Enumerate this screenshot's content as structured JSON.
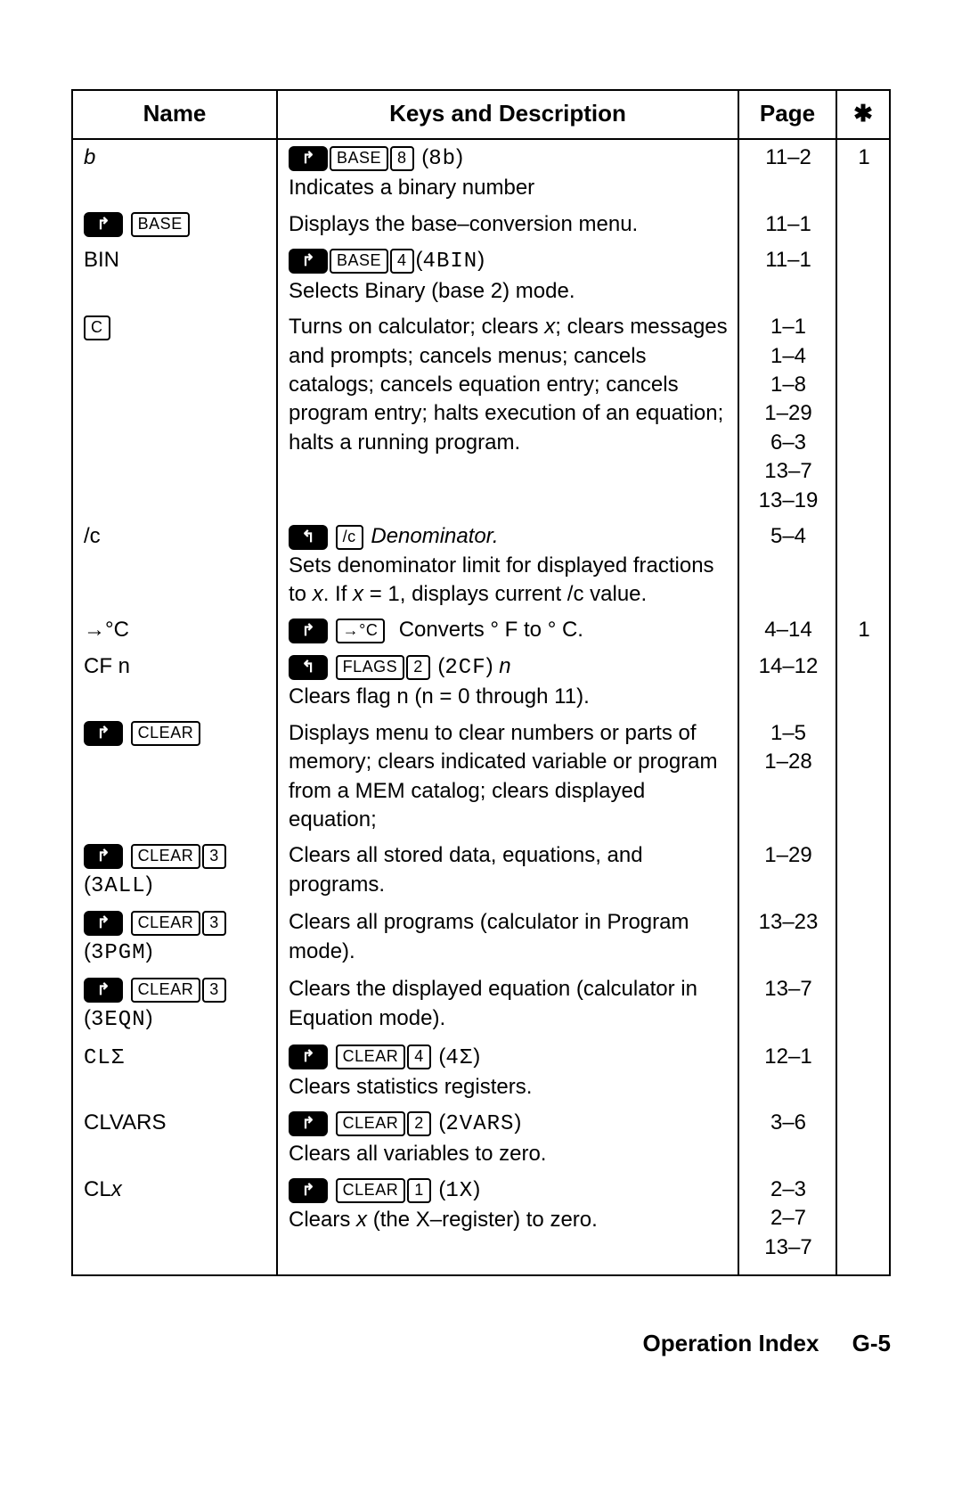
{
  "header": {
    "col_name": "Name",
    "col_desc": "Keys and Description",
    "col_page": "Page",
    "col_star": "✱"
  },
  "rows": {
    "r1": {
      "name_html": "<span class='ital'>b</span>",
      "desc_html": "<span class='kshift'>↱</span><span class='kbox'>BASE</span><span class='kbox'>8</span> (<span class='lcd'>8b</span>)<br>Indicates a binary number",
      "page_html": "11–2",
      "star_html": "1"
    },
    "r2": {
      "name_html": "<span class='kshift'>↱</span> <span class='kbox'>BASE</span>",
      "desc_html": "Displays the base–conversion menu.",
      "page_html": "11–1",
      "star_html": ""
    },
    "r3": {
      "name_html": "BIN",
      "desc_html": "<span class='kshift'>↱</span><span class='kbox'>BASE</span><span class='kbox'>4</span>(<span class='lcd'>4BIN</span>)<br>Selects Binary (base 2) mode.",
      "page_html": "11–1",
      "star_html": ""
    },
    "r4": {
      "name_html": "<span class='kbox'>C</span>",
      "desc_html": "Turns on calculator; clears <span class='ital'>x</span>; clears messages and prompts; cancels menus; cancels catalogs; cancels equation entry; cancels program entry; halts execution of an equation; halts a running program.",
      "page_html": "1–1<br>1–4<br>1–8<br>1–29<br>6–3<br>13–7<br>13–19",
      "star_html": ""
    },
    "r5": {
      "name_html": "/c",
      "desc_html": "<span class='kshift'>↰</span> <span class='kbox'>/c</span>&nbsp;<span class='ital'>Denominator.</span><br>Sets denominator limit for displayed fractions to <span class='ital'>x</span>. If <span class='ital'>x</span> = 1, displays current /c value.",
      "page_html": "5–4",
      "star_html": ""
    },
    "r6": {
      "name_html": "→°C",
      "desc_html": "<span class='kshift'>↱</span> <span class='kbox'>→°C</span>&nbsp; Converts ° F to ° C.",
      "page_html": "4–14",
      "star_html": "1"
    },
    "r7": {
      "name_html": "CF n",
      "desc_html": "<span class='kshift'>↰</span> <span class='kbox'>FLAGS</span><span class='kbox'>2</span> (<span class='lcd'>2CF</span>) <span class='ital'>n</span><br>Clears flag n (n = 0 through 11).",
      "page_html": "14–12",
      "star_html": ""
    },
    "r8": {
      "name_html": "<span class='kshift'>↱</span> <span class='kbox'>CLEAR</span>",
      "desc_html": "Displays menu to clear numbers or parts of memory; clears indicated variable or program from a MEM catalog; clears displayed equation;",
      "page_html": "1–5<br>1–28",
      "star_html": ""
    },
    "r9": {
      "name_html": "<span class='kshift'>↱</span> <span class='kbox'>CLEAR</span><span class='kbox'>3</span><br>(<span class='lcd'>3ALL</span>)",
      "desc_html": "Clears all stored data, equations, and programs.",
      "page_html": "1–29",
      "star_html": ""
    },
    "r10": {
      "name_html": "<span class='kshift'>↱</span> <span class='kbox'>CLEAR</span><span class='kbox'>3</span><br>(<span class='lcd'>3PGM</span>)",
      "desc_html": "Clears all programs (calculator in Program mode).",
      "page_html": "13–23",
      "star_html": ""
    },
    "r11": {
      "name_html": "<span class='kshift'>↱</span> <span class='kbox'>CLEAR</span><span class='kbox'>3</span><br>(<span class='lcd'>3EQN</span>)",
      "desc_html": "Clears the displayed equation (calculator in Equation mode).",
      "page_html": "13–7",
      "star_html": ""
    },
    "r12": {
      "name_html": "<span class='lcd'>CLΣ</span>",
      "desc_html": "<span class='kshift'>↱</span> <span class='kbox'>CLEAR</span><span class='kbox'>4</span> (<span class='lcd'>4Σ</span>)<br>Clears statistics registers.",
      "page_html": "12–1",
      "star_html": ""
    },
    "r13": {
      "name_html": "CLVARS",
      "desc_html": "<span class='kshift'>↱</span> <span class='kbox'>CLEAR</span><span class='kbox'>2</span> (<span class='lcd'>2VARS</span>)<br>Clears all variables to zero.",
      "page_html": "3–6",
      "star_html": ""
    },
    "r14": {
      "name_html": "CL<span class='ital'>x</span>",
      "desc_html": "<span class='kshift'>↱</span> <span class='kbox'>CLEAR</span><span class='kbox'>1</span> (<span class='lcd'>1X</span>)<br>Clears <span class='ital'>x</span> (the X–register) to zero.",
      "page_html": "2–3<br>2–7<br>13–7",
      "star_html": ""
    }
  },
  "footer": {
    "title": "Operation Index",
    "page_no": "G-5"
  }
}
